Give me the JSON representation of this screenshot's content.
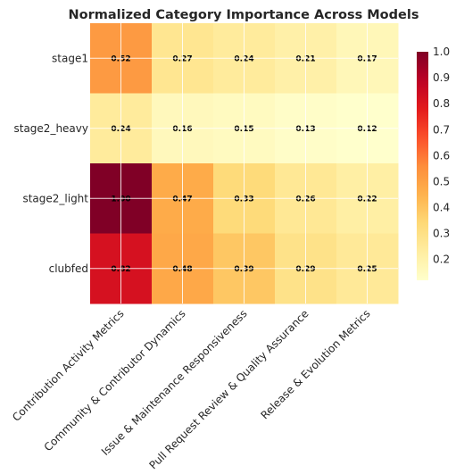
{
  "chart_data": {
    "type": "heatmap",
    "title": "Normalized Category Importance Across Models",
    "rows": [
      "stage1",
      "stage2_heavy",
      "stage2_light",
      "clubfed"
    ],
    "columns": [
      "Contribution Activity Metrics",
      "Community & Contributor Dynamics",
      "Issue & Maintenance Responsiveness",
      "Pull Request Review & Quality Assurance",
      "Release & Evolution Metrics"
    ],
    "values": [
      [
        0.52,
        0.27,
        0.24,
        0.21,
        0.17
      ],
      [
        0.24,
        0.16,
        0.15,
        0.13,
        0.12
      ],
      [
        1.0,
        0.47,
        0.33,
        0.26,
        0.22
      ],
      [
        0.82,
        0.48,
        0.39,
        0.29,
        0.25
      ]
    ],
    "cell_labels": [
      [
        "0.52",
        "0.27",
        "0.24",
        "0.21",
        "0.17"
      ],
      [
        "0.24",
        "0.16",
        "0.15",
        "0.13",
        "0.12"
      ],
      [
        "1.00",
        "0.47",
        "0.33",
        "0.26",
        "0.22"
      ],
      [
        "0.82",
        "0.48",
        "0.39",
        "0.29",
        "0.25"
      ]
    ],
    "colormap": "YlOrRd",
    "colorbar": {
      "range": [
        0.12,
        1.0
      ],
      "ticks": [
        "0.2",
        "0.3",
        "0.4",
        "0.5",
        "0.6",
        "0.7",
        "0.8",
        "0.9",
        "1.0"
      ]
    },
    "grid": true,
    "legend": "right"
  }
}
